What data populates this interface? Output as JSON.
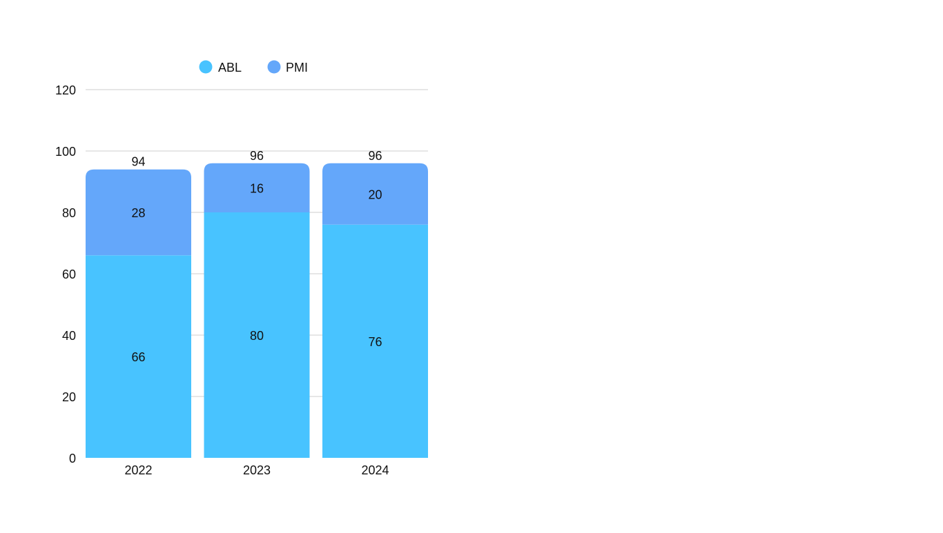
{
  "chart_data": {
    "type": "bar",
    "stacked": true,
    "categories": [
      "2022",
      "2023",
      "2024"
    ],
    "series": [
      {
        "name": "ABL",
        "values": [
          66,
          80,
          76
        ],
        "color": "#48C3FF"
      },
      {
        "name": "PMI",
        "values": [
          28,
          16,
          20
        ],
        "color": "#64A7FA"
      }
    ],
    "totals": [
      94,
      96,
      96
    ],
    "title": "",
    "xlabel": "",
    "ylabel": "",
    "ylim": [
      0,
      120
    ],
    "yticks": [
      0,
      20,
      40,
      60,
      80,
      100,
      120
    ],
    "grid": true,
    "legend_position": "top"
  }
}
